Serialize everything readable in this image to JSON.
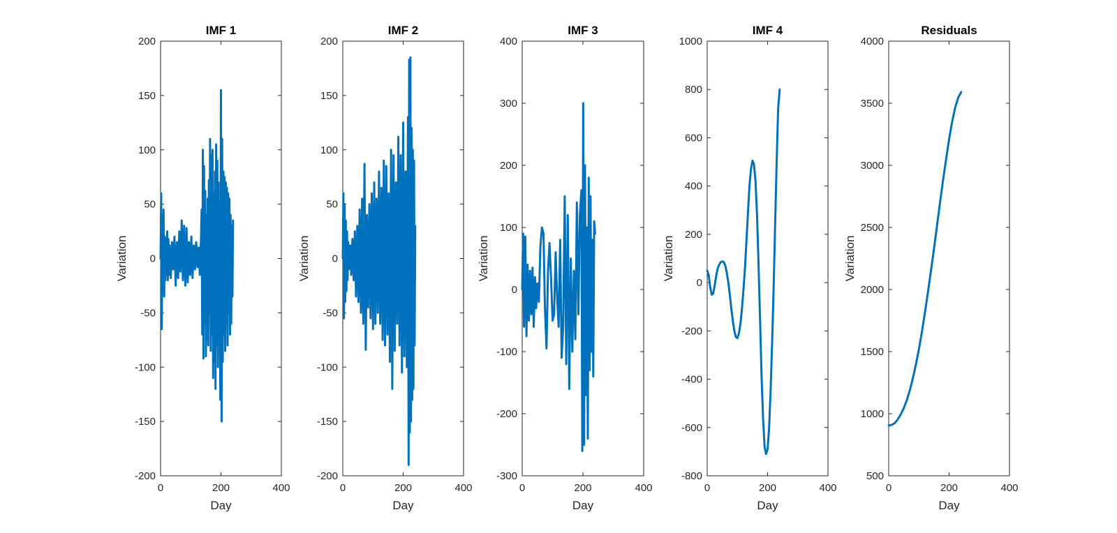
{
  "figure": {
    "background": "#ffffff",
    "line_color": "#0072bd"
  },
  "chart_data": [
    {
      "type": "line",
      "title": "IMF 1",
      "xlabel": "Day",
      "ylabel": "Variation",
      "xlim": [
        0,
        400
      ],
      "ylim": [
        -200,
        200
      ],
      "xticks": [
        0,
        200,
        400
      ],
      "yticks": [
        -200,
        -150,
        -100,
        -50,
        0,
        50,
        100,
        150,
        200
      ],
      "series": [
        {
          "x": [
            0,
            2,
            4,
            6,
            8,
            10,
            12,
            14,
            16,
            18,
            20,
            22,
            24,
            26,
            28,
            30,
            34,
            38,
            42,
            46,
            50,
            54,
            58,
            62,
            66,
            70,
            74,
            78,
            82,
            86,
            90,
            94,
            98,
            102,
            106,
            110,
            114,
            118,
            122,
            126,
            130,
            134,
            136,
            138,
            140,
            142,
            144,
            146,
            148,
            150,
            152,
            154,
            156,
            158,
            160,
            162,
            164,
            166,
            168,
            170,
            172,
            174,
            176,
            178,
            180,
            182,
            184,
            186,
            188,
            190,
            192,
            194,
            196,
            198,
            200,
            202,
            204,
            206,
            208,
            210,
            212,
            214,
            216,
            218,
            220,
            222,
            224,
            226,
            228,
            230,
            232,
            234,
            236,
            238,
            240
          ],
          "y": [
            0,
            60,
            -65,
            40,
            -30,
            45,
            -35,
            20,
            -20,
            18,
            -15,
            25,
            -20,
            18,
            -15,
            12,
            -18,
            15,
            -10,
            20,
            -25,
            15,
            -18,
            25,
            -12,
            35,
            -20,
            30,
            -25,
            28,
            -22,
            15,
            -15,
            20,
            -18,
            12,
            -10,
            15,
            -8,
            10,
            -15,
            20,
            45,
            -70,
            100,
            -92,
            85,
            -60,
            62,
            -90,
            40,
            -75,
            55,
            -80,
            72,
            -50,
            110,
            -85,
            95,
            -70,
            100,
            -110,
            60,
            -95,
            80,
            -120,
            105,
            -80,
            90,
            -100,
            70,
            -60,
            50,
            -130,
            155,
            -150,
            110,
            -95,
            80,
            -70,
            75,
            -85,
            70,
            -60,
            65,
            -80,
            60,
            -50,
            55,
            -70,
            40,
            -60,
            30,
            -35,
            35
          ]
        }
      ]
    },
    {
      "type": "line",
      "title": "IMF 2",
      "xlabel": "Day",
      "ylabel": "Variation",
      "xlim": [
        0,
        400
      ],
      "ylim": [
        -200,
        200
      ],
      "xticks": [
        0,
        200,
        400
      ],
      "yticks": [
        -200,
        -150,
        -100,
        -50,
        0,
        50,
        100,
        150,
        200
      ],
      "series": [
        {
          "x": [
            0,
            2,
            4,
            6,
            8,
            10,
            12,
            14,
            16,
            18,
            20,
            24,
            28,
            32,
            36,
            40,
            44,
            48,
            52,
            56,
            60,
            64,
            68,
            72,
            76,
            80,
            84,
            88,
            92,
            96,
            100,
            104,
            108,
            112,
            116,
            120,
            124,
            128,
            132,
            136,
            140,
            144,
            148,
            152,
            156,
            160,
            164,
            168,
            172,
            176,
            180,
            184,
            188,
            192,
            196,
            200,
            204,
            208,
            212,
            216,
            218,
            220,
            222,
            224,
            226,
            228,
            230,
            232,
            234,
            236,
            238,
            240
          ],
          "y": [
            0,
            60,
            -55,
            50,
            -40,
            35,
            -30,
            25,
            -20,
            15,
            -10,
            12,
            -15,
            18,
            -20,
            25,
            -35,
            30,
            -40,
            45,
            -50,
            55,
            -60,
            87,
            -84,
            40,
            -45,
            50,
            -55,
            60,
            -65,
            70,
            -60,
            55,
            -50,
            80,
            -60,
            65,
            -75,
            90,
            -80,
            85,
            -70,
            60,
            -95,
            100,
            -120,
            95,
            -85,
            70,
            -60,
            112,
            -80,
            95,
            -105,
            125,
            -90,
            80,
            -100,
            130,
            -190,
            183,
            -160,
            185,
            -150,
            120,
            -130,
            100,
            -120,
            90,
            -80,
            30
          ]
        }
      ]
    },
    {
      "type": "line",
      "title": "IMF 3",
      "xlabel": "Day",
      "ylabel": "Variation",
      "xlim": [
        0,
        400
      ],
      "ylim": [
        -300,
        400
      ],
      "xticks": [
        0,
        200,
        400
      ],
      "yticks": [
        -300,
        -200,
        -100,
        0,
        100,
        200,
        300,
        400
      ],
      "series": [
        {
          "x": [
            0,
            3,
            6,
            10,
            14,
            18,
            22,
            26,
            30,
            34,
            38,
            42,
            46,
            50,
            55,
            60,
            65,
            70,
            75,
            80,
            85,
            90,
            95,
            100,
            105,
            110,
            115,
            120,
            125,
            130,
            135,
            140,
            145,
            150,
            155,
            160,
            165,
            170,
            175,
            180,
            185,
            190,
            195,
            198,
            201,
            204,
            207,
            210,
            213,
            216,
            219,
            222,
            225,
            228,
            231,
            234,
            237,
            240
          ],
          "y": [
            0,
            90,
            -60,
            85,
            -75,
            40,
            -50,
            30,
            -40,
            35,
            -60,
            20,
            -30,
            10,
            -20,
            70,
            100,
            90,
            -30,
            -95,
            30,
            75,
            20,
            -50,
            -40,
            60,
            -10,
            -60,
            80,
            -110,
            -60,
            150,
            -120,
            120,
            -160,
            50,
            -100,
            30,
            -80,
            140,
            -40,
            120,
            160,
            -260,
            300,
            -250,
            200,
            -170,
            100,
            -240,
            180,
            -130,
            150,
            -100,
            80,
            -140,
            110,
            90
          ]
        }
      ]
    },
    {
      "type": "line",
      "title": "IMF 4",
      "xlabel": "Day",
      "ylabel": "Variation",
      "xlim": [
        0,
        400
      ],
      "ylim": [
        -800,
        1000
      ],
      "xticks": [
        0,
        200,
        400
      ],
      "yticks": [
        -800,
        -600,
        -400,
        -200,
        0,
        200,
        400,
        600,
        800,
        1000
      ],
      "series": [
        {
          "x": [
            0,
            5,
            10,
            15,
            20,
            25,
            30,
            35,
            40,
            45,
            50,
            55,
            60,
            65,
            70,
            75,
            80,
            85,
            90,
            95,
            100,
            105,
            110,
            115,
            120,
            125,
            130,
            135,
            140,
            145,
            150,
            155,
            160,
            165,
            170,
            175,
            180,
            185,
            190,
            195,
            200,
            205,
            210,
            215,
            220,
            225,
            230,
            235,
            240
          ],
          "y": [
            50,
            30,
            -20,
            -50,
            -45,
            -10,
            30,
            60,
            75,
            85,
            88,
            85,
            70,
            40,
            0,
            -50,
            -110,
            -160,
            -200,
            -225,
            -230,
            -210,
            -170,
            -110,
            -30,
            60,
            170,
            290,
            400,
            470,
            505,
            490,
            420,
            280,
            80,
            -150,
            -380,
            -560,
            -680,
            -710,
            -690,
            -600,
            -450,
            -250,
            -20,
            240,
            500,
            720,
            800
          ]
        }
      ]
    },
    {
      "type": "line",
      "title": "Residuals",
      "xlabel": "Day",
      "ylabel": "Variation",
      "xlim": [
        0,
        400
      ],
      "ylim": [
        500,
        4000
      ],
      "xticks": [
        0,
        200,
        400
      ],
      "yticks": [
        500,
        1000,
        1500,
        2000,
        2500,
        3000,
        3500,
        4000
      ],
      "series": [
        {
          "x": [
            0,
            10,
            20,
            30,
            40,
            50,
            60,
            70,
            80,
            90,
            100,
            110,
            120,
            130,
            140,
            150,
            160,
            170,
            180,
            190,
            200,
            210,
            220,
            230,
            240
          ],
          "y": [
            905,
            910,
            925,
            955,
            995,
            1045,
            1110,
            1190,
            1285,
            1395,
            1520,
            1660,
            1815,
            1980,
            2150,
            2330,
            2515,
            2700,
            2880,
            3050,
            3210,
            3350,
            3465,
            3545,
            3590
          ]
        }
      ]
    }
  ]
}
